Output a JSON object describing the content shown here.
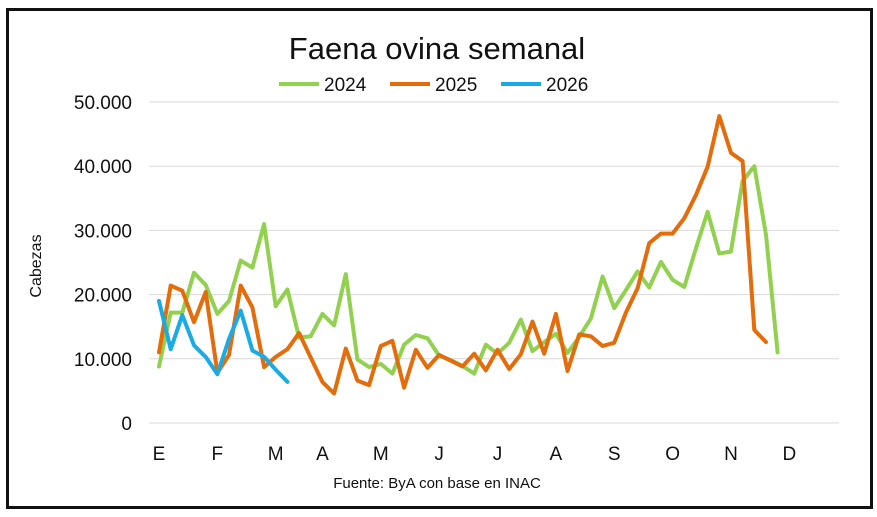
{
  "chart_data": {
    "type": "line",
    "title": "Faena ovina semanal",
    "ylabel": "Cabezas",
    "xlabel": "",
    "source": "Fuente: ByA con base en INAC",
    "ylim": [
      0,
      50000
    ],
    "y_ticks": [
      0,
      10000,
      20000,
      30000,
      40000,
      50000
    ],
    "y_tick_labels": [
      "0",
      "10.000",
      "20.000",
      "30.000",
      "40.000",
      "50.000"
    ],
    "x_tick_labels": [
      {
        "label": "E",
        "week": 1
      },
      {
        "label": "F",
        "week": 6
      },
      {
        "label": "M",
        "week": 11
      },
      {
        "label": "A",
        "week": 15
      },
      {
        "label": "M",
        "week": 20
      },
      {
        "label": "J",
        "week": 25
      },
      {
        "label": "J",
        "week": 30
      },
      {
        "label": "A",
        "week": 35
      },
      {
        "label": "S",
        "week": 40
      },
      {
        "label": "O",
        "week": 45
      },
      {
        "label": "N",
        "week": 50
      },
      {
        "label": "D",
        "week": 55
      }
    ],
    "x_range": [
      1,
      59
    ],
    "grid": true,
    "legend_position": "top-center",
    "series": [
      {
        "name": "2024",
        "color": "#92d050",
        "values": [
          8800,
          17200,
          17200,
          23400,
          21500,
          17000,
          19000,
          25300,
          24200,
          31000,
          18200,
          20800,
          13300,
          13500,
          17000,
          15200,
          23200,
          9900,
          8700,
          9200,
          7700,
          12200,
          13700,
          13200,
          10500,
          9800,
          8900,
          7700,
          12200,
          10800,
          12500,
          16100,
          11200,
          12600,
          13900,
          10900,
          13400,
          16300,
          22800,
          17900,
          20700,
          23600,
          21100,
          25100,
          22300,
          21200,
          27200,
          32900,
          26400,
          26700,
          37700,
          40000,
          29300,
          11000
        ]
      },
      {
        "name": "2025",
        "color": "#e46c0a",
        "values": [
          11000,
          21400,
          20600,
          15700,
          20400,
          7800,
          10600,
          21400,
          18000,
          8700,
          10300,
          11500,
          14000,
          10200,
          6400,
          4600,
          11600,
          6600,
          5900,
          12000,
          12800,
          5500,
          11400,
          8600,
          10600,
          9700,
          8800,
          10800,
          8200,
          11400,
          8400,
          10700,
          15800,
          10800,
          17000,
          8100,
          13800,
          13500,
          12000,
          12500,
          17200,
          21000,
          28000,
          29500,
          29500,
          31900,
          35500,
          39900,
          47800,
          42100,
          40800,
          14500,
          12600
        ]
      },
      {
        "name": "2026",
        "color": "#1aabe5",
        "values": [
          19000,
          11500,
          16800,
          12100,
          10300,
          7600,
          13100,
          17500,
          11300,
          10300,
          8300,
          6400
        ]
      }
    ]
  }
}
